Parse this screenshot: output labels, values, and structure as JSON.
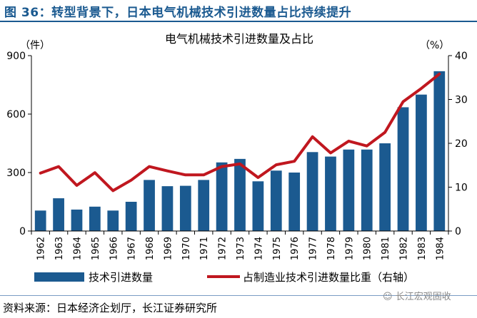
{
  "figure": {
    "title": "图 36：转型背景下，日本电气机械技术引进数量占比持续提升",
    "source": "资料来源：日本经济企划厅，长江证券研究所",
    "watermark": "长江宏观固收"
  },
  "chart_data": {
    "type": "bar",
    "title": "电气机械技术引进数量及占比",
    "left_unit": "（件）",
    "right_unit": "（%）",
    "categories": [
      "1962",
      "1963",
      "1964",
      "1965",
      "1966",
      "1967",
      "1968",
      "1969",
      "1970",
      "1971",
      "1972",
      "1973",
      "1974",
      "1975",
      "1976",
      "1977",
      "1978",
      "1979",
      "1980",
      "1981",
      "1982",
      "1983",
      "1984"
    ],
    "ylim": [
      0,
      900
    ],
    "yticks": [
      "0",
      "300",
      "600",
      "900"
    ],
    "y2lim": [
      0,
      40
    ],
    "y2ticks": [
      "0",
      "10",
      "20",
      "30",
      "40"
    ],
    "series": [
      {
        "name": "技术引进数量",
        "kind": "bar",
        "axis": "left",
        "color": "#1b5a90",
        "values": [
          105,
          168,
          110,
          125,
          105,
          150,
          262,
          230,
          232,
          262,
          352,
          370,
          255,
          310,
          300,
          405,
          382,
          418,
          418,
          450,
          635,
          700,
          820
        ]
      },
      {
        "name": "占制造业技术引进数量比重（右轴）",
        "kind": "line",
        "axis": "right",
        "color": "#c0171f",
        "values": [
          13.2,
          14.7,
          10.4,
          13.3,
          9.2,
          11.6,
          14.7,
          13.7,
          12.8,
          12.8,
          14.7,
          15.3,
          12.2,
          15.1,
          15.9,
          21.5,
          17.8,
          20.5,
          19.4,
          22.5,
          29.5,
          32.5,
          35.8
        ]
      }
    ],
    "grid": false,
    "legend_position": "bottom"
  }
}
